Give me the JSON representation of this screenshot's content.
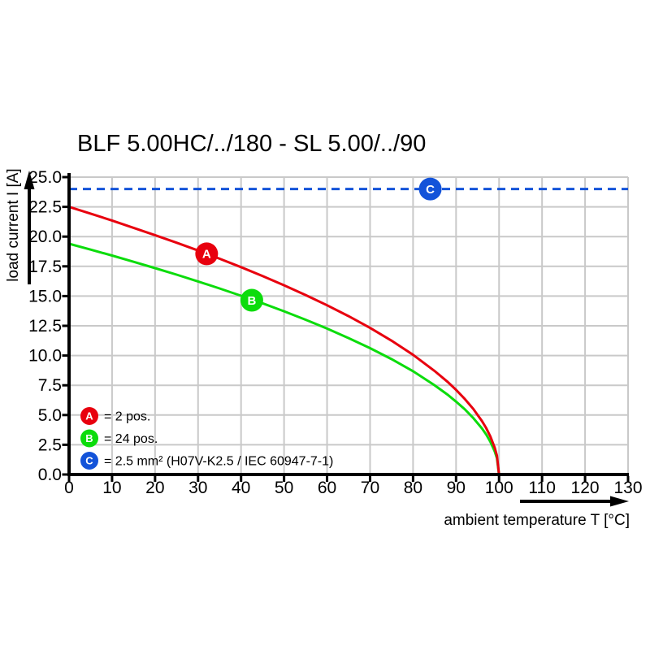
{
  "window": {
    "background": "#ffffff"
  },
  "chart_data": {
    "type": "line",
    "title": "BLF 5.00HC/../180 - SL 5.00/../90",
    "xlabel": "ambient temperature T [°C]",
    "ylabel": "load current I [A]",
    "xlim": [
      0,
      130
    ],
    "ylim": [
      0,
      25
    ],
    "x_ticks": [
      0,
      10,
      20,
      30,
      40,
      50,
      60,
      70,
      80,
      90,
      100,
      110,
      120,
      130
    ],
    "x_tick_labels": [
      "0",
      "10",
      "20",
      "30",
      "40",
      "50",
      "60",
      "70",
      "80",
      "90",
      "100",
      "110",
      "120",
      "130"
    ],
    "y_ticks": [
      0,
      2.5,
      5,
      7.5,
      10,
      12.5,
      15,
      17.5,
      20,
      22.5,
      25
    ],
    "y_tick_labels": [
      "0.0",
      "2.5",
      "5.0",
      "7.5",
      "10.0",
      "12.5",
      "15.0",
      "17.5",
      "20.0",
      "22.5",
      "25.0"
    ],
    "grid": true,
    "grid_color": "#c9c9c9",
    "axis_color": "#000000",
    "legend_position": "inside-bottom-left",
    "series": [
      {
        "id": "A",
        "name": "2 pos.",
        "legend_label": "= 2 pos.",
        "color": "#e8000e",
        "line_style": "solid",
        "marker": {
          "letter": "A",
          "t": 32,
          "i": 18.55
        },
        "points": [
          [
            0,
            22.5
          ],
          [
            5,
            21.93
          ],
          [
            10,
            21.35
          ],
          [
            15,
            20.74
          ],
          [
            20,
            20.12
          ],
          [
            25,
            19.49
          ],
          [
            30,
            18.83
          ],
          [
            35,
            18.14
          ],
          [
            40,
            17.43
          ],
          [
            45,
            16.69
          ],
          [
            50,
            15.91
          ],
          [
            55,
            15.09
          ],
          [
            60,
            14.23
          ],
          [
            65,
            13.31
          ],
          [
            70,
            12.32
          ],
          [
            75,
            11.25
          ],
          [
            80,
            10.06
          ],
          [
            85,
            8.71
          ],
          [
            88,
            7.8
          ],
          [
            90,
            7.12
          ],
          [
            92,
            6.36
          ],
          [
            94,
            5.51
          ],
          [
            96,
            4.5
          ],
          [
            97,
            3.9
          ],
          [
            98,
            3.18
          ],
          [
            99,
            2.25
          ],
          [
            99.5,
            1.59
          ],
          [
            100,
            0
          ]
        ]
      },
      {
        "id": "B",
        "name": "24 pos.",
        "legend_label": "= 24 pos.",
        "color": "#0cdc0c",
        "line_style": "solid",
        "marker": {
          "letter": "B",
          "t": 42.5,
          "i": 14.65
        },
        "points": [
          [
            0,
            19.4
          ],
          [
            5,
            18.91
          ],
          [
            10,
            18.41
          ],
          [
            15,
            17.88
          ],
          [
            20,
            17.35
          ],
          [
            25,
            16.8
          ],
          [
            30,
            16.23
          ],
          [
            35,
            15.64
          ],
          [
            40,
            15.03
          ],
          [
            45,
            14.39
          ],
          [
            50,
            13.72
          ],
          [
            55,
            13.01
          ],
          [
            60,
            12.27
          ],
          [
            65,
            11.47
          ],
          [
            70,
            10.62
          ],
          [
            75,
            9.7
          ],
          [
            80,
            8.68
          ],
          [
            85,
            7.51
          ],
          [
            88,
            6.72
          ],
          [
            90,
            6.13
          ],
          [
            92,
            5.49
          ],
          [
            94,
            4.75
          ],
          [
            96,
            3.88
          ],
          [
            97,
            3.36
          ],
          [
            98,
            2.74
          ],
          [
            99,
            1.94
          ],
          [
            99.5,
            1.37
          ],
          [
            100,
            0
          ]
        ]
      },
      {
        "id": "C",
        "name": "2.5 mm² (H07V-K2.5 / IEC 60947-7-1)",
        "legend_label": "= 2.5 mm² (H07V-K2.5 / IEC 60947-7-1)",
        "color": "#1353d9",
        "line_style": "dashed",
        "constant_value": 24,
        "marker": {
          "letter": "C",
          "t": 84,
          "i": 24
        },
        "points": [
          [
            0,
            24
          ],
          [
            130,
            24
          ]
        ]
      }
    ]
  }
}
